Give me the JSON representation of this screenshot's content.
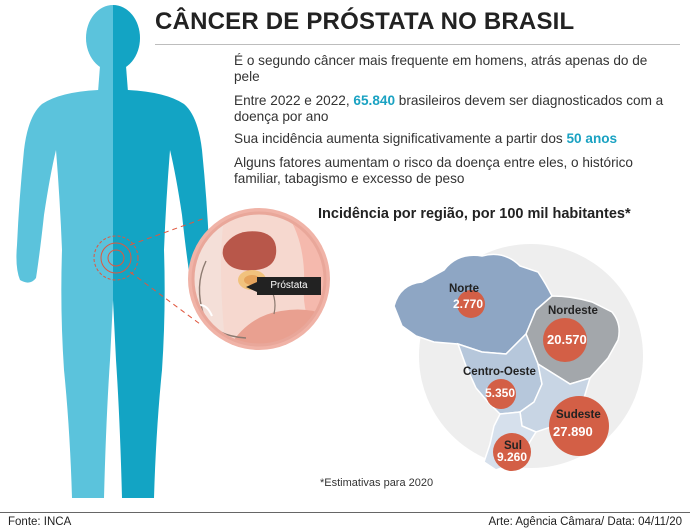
{
  "title": "CÂNCER DE PRÓSTATA NO BRASIL",
  "facts": {
    "f1": "É o segundo câncer mais frequente em homens, atrás apenas do de pele",
    "f2_pre": "Entre 2022 e 2022, ",
    "f2_hl": "65.840",
    "f2_post": " brasileiros devem ser diagnosticados com a doença por ano",
    "f3_pre": "Sua incidência aumenta significativamente a partir dos ",
    "f3_hl": "50 anos",
    "f4": "Alguns fatores aumentam o risco da doença entre eles, o histórico familiar, tabagismo e excesso de peso"
  },
  "anatomy_label": "Próstata",
  "map": {
    "title": "Incidência por região, por 100 mil habitantes*",
    "regions": [
      {
        "name": "Norte",
        "value": "2.770"
      },
      {
        "name": "Nordeste",
        "value": "20.570"
      },
      {
        "name": "Centro-Oeste",
        "value": "5.350"
      },
      {
        "name": "Sudeste",
        "value": "27.890"
      },
      {
        "name": "Sul",
        "value": "9.260"
      }
    ],
    "footnote": "*Estimativas para 2020"
  },
  "source": "Fonte: INCA",
  "credit": "Arte: Agência Câmara/ Data: 04/11/20",
  "colors": {
    "body_left": "#5bc3dc",
    "body_right": "#13a4c4",
    "highlight": "#1aa2c2",
    "bubble": "#d35f46",
    "region_norte": "#8ea6c4",
    "region_nordeste": "#a3a7ab",
    "region_centro_oeste": "#b6c7db",
    "region_sudeste": "#c8d5e4",
    "region_sul": "#d6e0ec"
  }
}
